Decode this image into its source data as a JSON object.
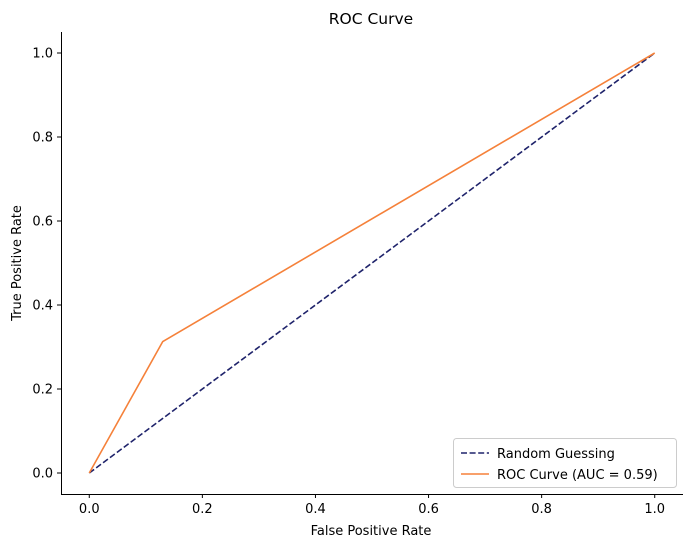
{
  "chart_data": {
    "type": "line",
    "title": "ROC Curve",
    "xlabel": "False Positive Rate",
    "ylabel": "True Positive Rate",
    "xlim": [
      -0.05,
      1.05
    ],
    "ylim": [
      -0.05,
      1.05
    ],
    "xticks": [
      0.0,
      0.2,
      0.4,
      0.6,
      0.8,
      1.0
    ],
    "xtick_labels": [
      "0.0",
      "0.2",
      "0.4",
      "0.6",
      "0.8",
      "1.0"
    ],
    "yticks": [
      0.0,
      0.2,
      0.4,
      0.6,
      0.8,
      1.0
    ],
    "ytick_labels": [
      "0.0",
      "0.2",
      "0.4",
      "0.6",
      "0.8",
      "1.0"
    ],
    "grid": false,
    "legend_position": "bottom-right",
    "series": [
      {
        "name": "Random Guessing",
        "style": "dashed",
        "color": "#1f236b",
        "x": [
          0.0,
          1.0
        ],
        "y": [
          0.0,
          1.0
        ]
      },
      {
        "name": "ROC Curve (AUC = 0.59)",
        "style": "solid",
        "color": "#f5813a",
        "x": [
          0.0,
          0.13,
          1.0
        ],
        "y": [
          0.0,
          0.313,
          1.0
        ]
      }
    ]
  }
}
